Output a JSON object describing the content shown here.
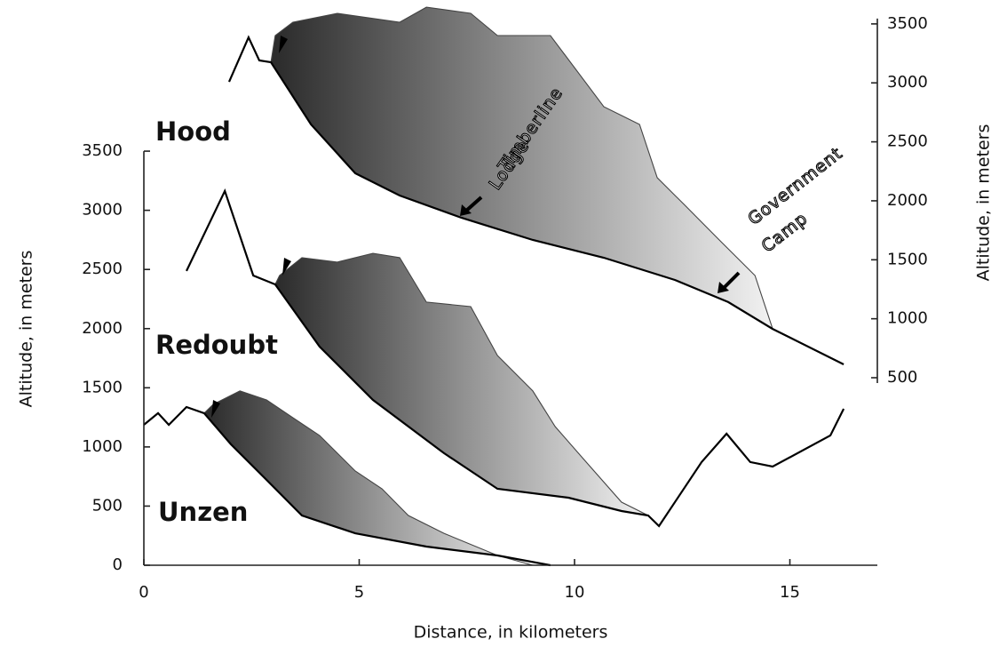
{
  "chart_data": {
    "type": "line",
    "y_label": "Altitude, in meters",
    "y2_label": "Altitude, in meters",
    "x_label": "Distance, in kilometers",
    "xlim": [
      0,
      17
    ],
    "xticks": [
      0,
      5,
      10,
      15
    ],
    "ylim": [
      0,
      4740
    ],
    "yticks": [
      0,
      500,
      1000,
      1500,
      2000,
      2500,
      3000,
      3500
    ],
    "y2lim": [
      -1090,
      3665
    ],
    "y2ticks": [
      500,
      1000,
      1500,
      2000,
      2500,
      3000,
      3500
    ],
    "series": [
      {
        "name": "Hood",
        "axis": "y2",
        "color": "#000000",
        "x": [
          1.98,
          2.43,
          2.68,
          2.95,
          3.88,
          4.91,
          5.94,
          7.38,
          9.03,
          10.68,
          12.33,
          13.57,
          14.6,
          16.25
        ],
        "values": [
          3009,
          3386,
          3190,
          3175,
          2648,
          2233,
          2045,
          1856,
          1668,
          1517,
          1329,
          1141,
          914,
          613
        ],
        "flow_x": [
          2.95,
          3.05,
          3.46,
          4.49,
          5.94,
          6.56,
          7.59,
          8.21,
          9.44,
          10.68,
          11.51,
          11.92,
          12.54,
          13.36,
          14.19,
          14.6
        ],
        "flow_values": [
          3175,
          3401,
          3514,
          3590,
          3514,
          3642,
          3590,
          3401,
          3401,
          2798,
          2648,
          2196,
          1970,
          1668,
          1367,
          914
        ]
      },
      {
        "name": "Redoubt",
        "color": "#000000",
        "x": [
          0.99,
          1.88,
          2.54,
          3.05,
          4.08,
          5.32,
          6.97,
          8.21,
          9.86,
          11.09,
          11.71,
          11.96,
          12.95,
          13.53,
          14.08,
          14.6,
          15.94,
          16.25
        ],
        "values": [
          2487,
          3163,
          2449,
          2374,
          1848,
          1397,
          947,
          646,
          571,
          458,
          421,
          331,
          872,
          1112,
          872,
          834,
          1097,
          1322
        ],
        "flow_x": [
          3.05,
          3.15,
          3.67,
          4.49,
          5.32,
          5.94,
          6.56,
          7.59,
          8.21,
          9.03,
          9.55,
          10.27,
          11.09,
          11.71
        ],
        "flow_values": [
          2374,
          2449,
          2600,
          2562,
          2637,
          2600,
          2224,
          2186,
          1773,
          1473,
          1172,
          872,
          533,
          421
        ]
      },
      {
        "name": "Unzen",
        "color": "#000000",
        "x": [
          0,
          0.33,
          0.58,
          0.99,
          1.4,
          2.02,
          2.85,
          3.67,
          4.91,
          6.56,
          8.21,
          9.44
        ],
        "values": [
          1187,
          1285,
          1187,
          1337,
          1285,
          1022,
          721,
          421,
          270,
          158,
          83,
          0
        ],
        "flow_x": [
          1.4,
          1.61,
          2.23,
          2.85,
          3.46,
          4.08,
          4.91,
          5.53,
          6.14,
          6.97,
          8.21,
          9.03
        ],
        "flow_values": [
          1285,
          1360,
          1473,
          1397,
          1247,
          1097,
          796,
          646,
          421,
          270,
          83,
          0
        ]
      }
    ],
    "annotations": [
      {
        "lines": [
          "Timberline",
          "Lodge"
        ]
      },
      {
        "lines": [
          "Government",
          "Camp"
        ]
      }
    ]
  }
}
